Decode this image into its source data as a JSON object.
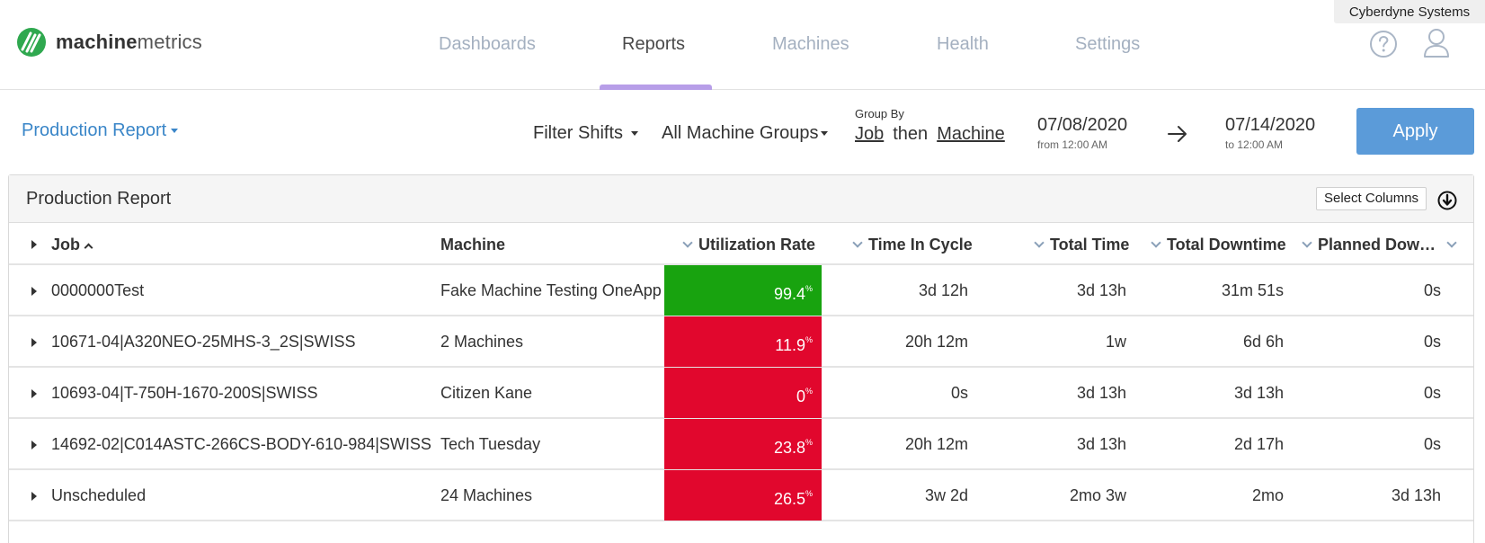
{
  "org": {
    "name": "Cyberdyne Systems"
  },
  "brand": {
    "name_bold": "machine",
    "name_light": "metrics",
    "logo_color": "#2fa84f"
  },
  "nav": {
    "items": [
      {
        "label": "Dashboards",
        "active": false
      },
      {
        "label": "Reports",
        "active": true
      },
      {
        "label": "Machines",
        "active": false
      },
      {
        "label": "Health",
        "active": false
      },
      {
        "label": "Settings",
        "active": false
      }
    ],
    "accent_color": "#b79ee8"
  },
  "toolbar": {
    "report_selector": "Production Report",
    "filter_shifts": "Filter Shifts",
    "machine_groups": "All Machine Groups",
    "group_by": {
      "label": "Group By",
      "primary": "Job",
      "connector": "then",
      "secondary": "Machine"
    },
    "date_from": {
      "value": "07/08/2020",
      "sub": "from 12:00 AM"
    },
    "date_to": {
      "value": "07/14/2020",
      "sub": "to 12:00 AM"
    },
    "apply_label": "Apply",
    "apply_color": "#5b9bd9"
  },
  "panel": {
    "title": "Production Report",
    "select_columns_label": "Select Columns"
  },
  "table": {
    "columns": [
      {
        "label": "Job"
      },
      {
        "label": "Machine"
      },
      {
        "label": "Utilization Rate"
      },
      {
        "label": "Time In Cycle"
      },
      {
        "label": "Total Time"
      },
      {
        "label": "Total Downtime"
      },
      {
        "label": "Planned Dow…"
      }
    ],
    "rows": [
      {
        "job": "0000000Test",
        "machine": "Fake Machine Testing OneApp",
        "utilization": "99.4",
        "status": "good",
        "time_in_cycle": "3d 12h",
        "total_time": "3d 13h",
        "total_downtime": "31m 51s",
        "planned_downtime": "0s"
      },
      {
        "job": "10671-04|A320NEO-25MHS-3_2S|SWISS",
        "machine": "2 Machines",
        "utilization": "11.9",
        "status": "bad",
        "time_in_cycle": "20h 12m",
        "total_time": "1w",
        "total_downtime": "6d 6h",
        "planned_downtime": "0s"
      },
      {
        "job": "10693-04|T-750H-1670-200S|SWISS",
        "machine": "Citizen Kane",
        "utilization": "0",
        "status": "bad",
        "time_in_cycle": "0s",
        "total_time": "3d 13h",
        "total_downtime": "3d 13h",
        "planned_downtime": "0s"
      },
      {
        "job": "14692-02|C014ASTC-266CS-BODY-610-984|SWISS",
        "machine": "Tech Tuesday",
        "utilization": "23.8",
        "status": "bad",
        "time_in_cycle": "20h 12m",
        "total_time": "3d 13h",
        "total_downtime": "2d 17h",
        "planned_downtime": "0s"
      },
      {
        "job": "Unscheduled",
        "machine": "24 Machines",
        "utilization": "26.5",
        "status": "bad",
        "time_in_cycle": "3w 2d",
        "total_time": "2mo 3w",
        "total_downtime": "2mo",
        "planned_downtime": "3d 13h"
      }
    ],
    "utilization_suffix": "%",
    "status_colors": {
      "good": "#18a30f",
      "bad": "#e1072d"
    }
  }
}
